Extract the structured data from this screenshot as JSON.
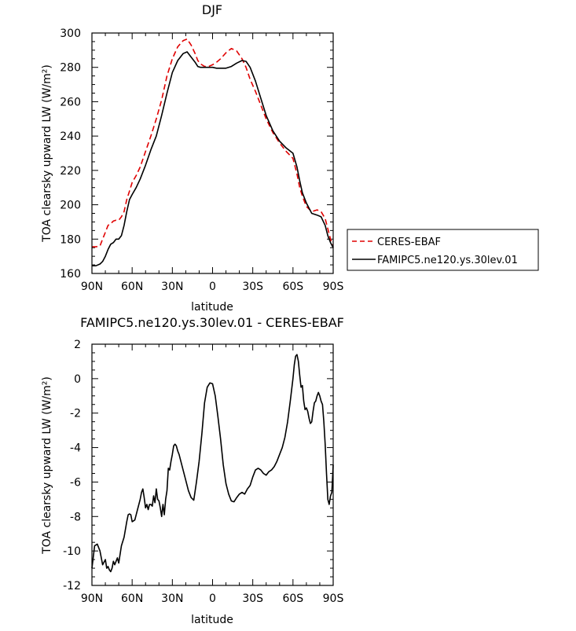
{
  "chart_data": [
    {
      "type": "line",
      "title": "DJF",
      "xlabel": "latitude",
      "ylabel": "TOA clearsky upward LW (W/m²)",
      "x_ticks": [
        "90N",
        "60N",
        "30N",
        "0",
        "30S",
        "60S",
        "90S"
      ],
      "xlim": [
        90,
        -90
      ],
      "ylim": [
        160,
        300
      ],
      "y_ticks": [
        160,
        180,
        200,
        220,
        240,
        260,
        280,
        300
      ],
      "legend_position": "right, outside plot",
      "series": [
        {
          "name": "CERES-EBAF",
          "color": "#e00000",
          "style": "dashed",
          "x": [
            90,
            87,
            84,
            82,
            80,
            78,
            76,
            74,
            72,
            70,
            68,
            66,
            64,
            62,
            60,
            57,
            54,
            50,
            46,
            42,
            38,
            34,
            30,
            26,
            22,
            19,
            16,
            13,
            11,
            9,
            6,
            3,
            0,
            -3,
            -6,
            -10,
            -14,
            -18,
            -22,
            -25,
            -28,
            -32,
            -36,
            -40,
            -45,
            -50,
            -55,
            -60,
            -63,
            -65,
            -67,
            -70,
            -74,
            -78,
            -81,
            -84,
            -86,
            -88,
            -90
          ],
          "values": [
            175.5,
            175.5,
            176,
            180,
            184,
            188,
            189,
            190.5,
            191,
            191,
            193,
            196,
            203,
            208,
            213,
            217,
            222,
            231,
            240,
            250,
            261,
            275,
            285,
            292,
            295.5,
            296.5,
            293,
            288,
            284,
            282,
            280.5,
            280.5,
            281.5,
            283,
            285,
            288.5,
            291,
            289.5,
            285,
            280,
            273,
            266,
            258,
            250,
            242,
            236,
            231,
            227,
            218,
            210,
            205,
            199,
            196,
            197,
            196,
            192,
            186,
            180,
            175
          ]
        },
        {
          "name": "FAMIPC5.ne120.ys.30lev.01",
          "color": "#000000",
          "style": "solid",
          "x": [
            90,
            87,
            84,
            82,
            80,
            78,
            76,
            74,
            72,
            70,
            68,
            66,
            64,
            62,
            60,
            57,
            54,
            50,
            46,
            42,
            38,
            34,
            30,
            26,
            22,
            19,
            16,
            13,
            11,
            9,
            6,
            3,
            0,
            -3,
            -6,
            -10,
            -14,
            -18,
            -22,
            -25,
            -28,
            -32,
            -36,
            -40,
            -45,
            -50,
            -55,
            -60,
            -63,
            -65,
            -67,
            -70,
            -74,
            -78,
            -81,
            -84,
            -86,
            -88,
            -90
          ],
          "values": [
            164.5,
            164.5,
            165.5,
            167,
            170,
            174,
            177,
            178,
            180,
            180,
            182,
            188,
            196,
            203,
            206,
            210,
            215,
            223,
            232,
            240,
            252,
            265,
            277,
            284,
            288,
            289,
            286,
            283,
            280.5,
            280,
            280,
            280,
            280,
            279.5,
            279.5,
            279.5,
            280.5,
            282.5,
            284,
            283.5,
            280,
            272,
            262,
            252,
            243,
            237,
            233,
            230,
            222,
            214,
            207,
            201,
            195,
            194,
            193,
            188,
            182,
            178,
            175
          ]
        }
      ]
    },
    {
      "type": "line",
      "title": "FAMIPC5.ne120.ys.30lev.01 - CERES-EBAF",
      "xlabel": "latitude",
      "ylabel": "TOA clearsky upward LW (W/m²)",
      "x_ticks": [
        "90N",
        "60N",
        "30N",
        "0",
        "30S",
        "60S",
        "90S"
      ],
      "xlim": [
        90,
        -90
      ],
      "ylim": [
        -12,
        2
      ],
      "y_ticks": [
        -12,
        -10,
        -8,
        -6,
        -4,
        -2,
        0,
        2
      ],
      "series": [
        {
          "color": "#000000",
          "style": "solid",
          "x": [
            90,
            88,
            86,
            84,
            82,
            80,
            79,
            78,
            77,
            76,
            75,
            74,
            73,
            72,
            71,
            70,
            68,
            66,
            64,
            63,
            62,
            61,
            60,
            58,
            57,
            56,
            54,
            53,
            52,
            51,
            50,
            49,
            48,
            47,
            46,
            45,
            44,
            43,
            42,
            41,
            40,
            39,
            38,
            37,
            36,
            35,
            34,
            33,
            32,
            31,
            30,
            29,
            28,
            27,
            26,
            25,
            24,
            22,
            20,
            18,
            16,
            14,
            12,
            10,
            8,
            6,
            4,
            2,
            0,
            -2,
            -4,
            -6,
            -8,
            -10,
            -12,
            -14,
            -16,
            -18,
            -20,
            -22,
            -24,
            -26,
            -28,
            -30,
            -32,
            -34,
            -36,
            -38,
            -40,
            -42,
            -44,
            -46,
            -48,
            -50,
            -52,
            -54,
            -56,
            -58,
            -60,
            -61,
            -62,
            -63,
            -64,
            -65,
            -66,
            -67,
            -68,
            -69,
            -70,
            -71,
            -72,
            -73,
            -74,
            -75,
            -76,
            -77,
            -78,
            -79,
            -80,
            -81,
            -82,
            -83,
            -84,
            -85,
            -86,
            -87,
            -88,
            -89,
            -90
          ],
          "values": [
            -11,
            -9.7,
            -9.6,
            -10,
            -10.8,
            -10.5,
            -11,
            -10.9,
            -11.1,
            -11.2,
            -11,
            -10.6,
            -10.8,
            -10.6,
            -10.4,
            -10.7,
            -9.7,
            -9.2,
            -8.3,
            -7.9,
            -7.85,
            -7.9,
            -8.3,
            -8.2,
            -7.9,
            -7.6,
            -7,
            -6.6,
            -6.4,
            -6.9,
            -7.5,
            -7.3,
            -7.6,
            -7.3,
            -7.3,
            -7.4,
            -6.8,
            -7.2,
            -6.4,
            -7,
            -7.1,
            -7.5,
            -8,
            -7.3,
            -7.9,
            -7,
            -6.5,
            -5.2,
            -5.3,
            -4.8,
            -4.4,
            -3.9,
            -3.8,
            -3.9,
            -4.2,
            -4.4,
            -4.7,
            -5.3,
            -5.9,
            -6.5,
            -6.9,
            -7.05,
            -6,
            -4.8,
            -3.2,
            -1.4,
            -0.5,
            -0.25,
            -0.3,
            -1,
            -2.2,
            -3.5,
            -5,
            -6.1,
            -6.7,
            -7.1,
            -7.15,
            -6.9,
            -6.7,
            -6.6,
            -6.7,
            -6.4,
            -6.2,
            -5.7,
            -5.3,
            -5.2,
            -5.3,
            -5.5,
            -5.6,
            -5.4,
            -5.3,
            -5.1,
            -4.8,
            -4.4,
            -4,
            -3.4,
            -2.5,
            -1.3,
            0,
            0.8,
            1.3,
            1.4,
            1.0,
            0.2,
            -0.5,
            -0.4,
            -1.3,
            -1.8,
            -1.7,
            -1.9,
            -2.3,
            -2.6,
            -2.5,
            -1.9,
            -1.4,
            -1.3,
            -1.0,
            -0.8,
            -1.0,
            -1.3,
            -1.5,
            -2.5,
            -3.8,
            -5.5,
            -7.0,
            -7.3,
            -6.8,
            -6.6,
            -5
          ]
        }
      ]
    }
  ]
}
